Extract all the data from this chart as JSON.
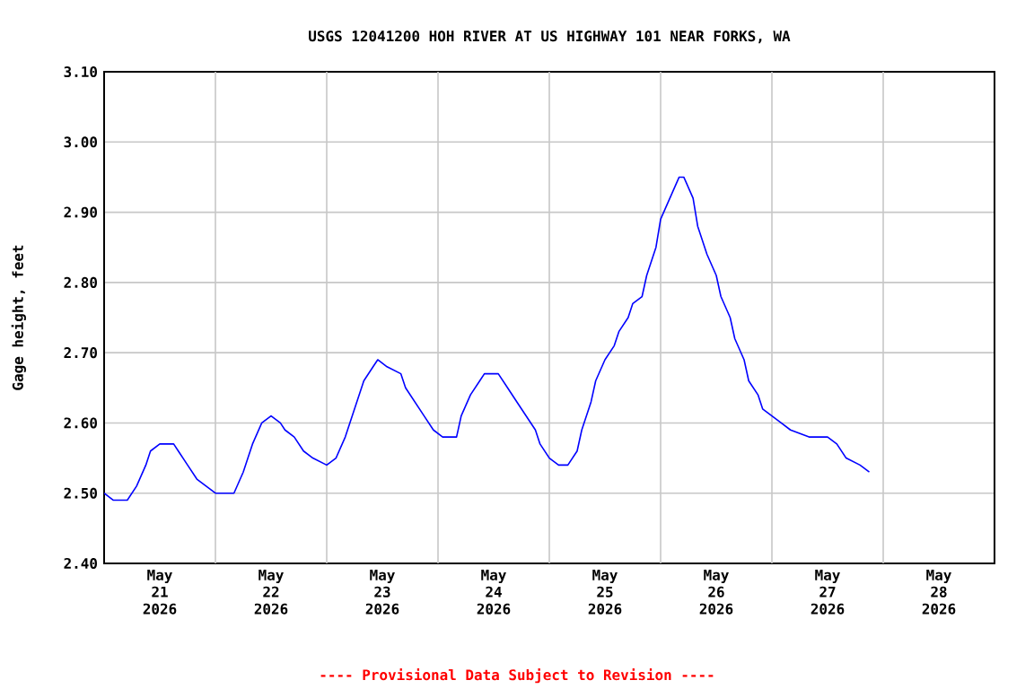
{
  "chart_data": {
    "type": "line",
    "title": "USGS 12041200 HOH RIVER AT US HIGHWAY 101 NEAR FORKS, WA",
    "ylabel": "Gage height, feet",
    "annotations": [
      "---- Provisional Data Subject to Revision ----"
    ],
    "x": [
      "2026-05-21T00:00",
      "2026-05-21T02:00",
      "2026-05-21T05:00",
      "2026-05-21T07:00",
      "2026-05-21T09:00",
      "2026-05-21T10:00",
      "2026-05-21T12:00",
      "2026-05-21T15:00",
      "2026-05-21T16:00",
      "2026-05-21T18:00",
      "2026-05-21T20:00",
      "2026-05-21T22:00",
      "2026-05-22T00:00",
      "2026-05-22T04:00",
      "2026-05-22T06:00",
      "2026-05-22T08:00",
      "2026-05-22T10:00",
      "2026-05-22T12:00",
      "2026-05-22T14:00",
      "2026-05-22T15:00",
      "2026-05-22T17:00",
      "2026-05-22T19:00",
      "2026-05-22T21:00",
      "2026-05-23T00:00",
      "2026-05-23T02:00",
      "2026-05-23T04:00",
      "2026-05-23T06:00",
      "2026-05-23T08:00",
      "2026-05-23T10:00",
      "2026-05-23T11:00",
      "2026-05-23T13:00",
      "2026-05-23T16:00",
      "2026-05-23T17:00",
      "2026-05-23T19:00",
      "2026-05-23T21:00",
      "2026-05-23T23:00",
      "2026-05-24T01:00",
      "2026-05-24T04:00",
      "2026-05-24T05:00",
      "2026-05-24T07:00",
      "2026-05-24T09:00",
      "2026-05-24T10:00",
      "2026-05-24T13:00",
      "2026-05-24T15:00",
      "2026-05-24T17:00",
      "2026-05-24T19:00",
      "2026-05-24T21:00",
      "2026-05-24T22:00",
      "2026-05-25T00:00",
      "2026-05-25T02:00",
      "2026-05-25T04:00",
      "2026-05-25T06:00",
      "2026-05-25T07:00",
      "2026-05-25T09:00",
      "2026-05-25T10:00",
      "2026-05-25T12:00",
      "2026-05-25T14:00",
      "2026-05-25T15:00",
      "2026-05-25T17:00",
      "2026-05-25T18:00",
      "2026-05-25T20:00",
      "2026-05-25T21:00",
      "2026-05-25T23:00",
      "2026-05-26T00:00",
      "2026-05-26T02:00",
      "2026-05-26T04:00",
      "2026-05-26T05:00",
      "2026-05-26T07:00",
      "2026-05-26T08:00",
      "2026-05-26T10:00",
      "2026-05-26T12:00",
      "2026-05-26T13:00",
      "2026-05-26T15:00",
      "2026-05-26T16:00",
      "2026-05-26T18:00",
      "2026-05-26T19:00",
      "2026-05-26T21:00",
      "2026-05-26T22:00",
      "2026-05-27T00:00",
      "2026-05-27T02:00",
      "2026-05-27T04:00",
      "2026-05-27T08:00",
      "2026-05-27T12:00",
      "2026-05-27T14:00",
      "2026-05-27T16:00",
      "2026-05-27T19:00",
      "2026-05-27T21:00"
    ],
    "series": [
      {
        "color": "#0000ff",
        "values": [
          2.5,
          2.49,
          2.49,
          2.51,
          2.54,
          2.56,
          2.57,
          2.57,
          2.56,
          2.54,
          2.52,
          2.51,
          2.5,
          2.5,
          2.53,
          2.57,
          2.6,
          2.61,
          2.6,
          2.59,
          2.58,
          2.56,
          2.55,
          2.54,
          2.55,
          2.58,
          2.62,
          2.66,
          2.68,
          2.69,
          2.68,
          2.67,
          2.65,
          2.63,
          2.61,
          2.59,
          2.58,
          2.58,
          2.61,
          2.64,
          2.66,
          2.67,
          2.67,
          2.65,
          2.63,
          2.61,
          2.59,
          2.57,
          2.55,
          2.54,
          2.54,
          2.56,
          2.59,
          2.63,
          2.66,
          2.69,
          2.71,
          2.73,
          2.75,
          2.77,
          2.78,
          2.81,
          2.85,
          2.89,
          2.92,
          2.95,
          2.95,
          2.92,
          2.88,
          2.84,
          2.81,
          2.78,
          2.75,
          2.72,
          2.69,
          2.66,
          2.64,
          2.62,
          2.61,
          2.6,
          2.59,
          2.58,
          2.58,
          2.57,
          2.55,
          2.54,
          2.53
        ]
      }
    ],
    "xlim": [
      "2026-05-21T00:00",
      "2026-05-29T00:00"
    ],
    "xticks": [
      {
        "value": "2026-05-21T12:00",
        "label": "May 21 2026"
      },
      {
        "value": "2026-05-22T12:00",
        "label": "May 22 2026"
      },
      {
        "value": "2026-05-23T12:00",
        "label": "May 23 2026"
      },
      {
        "value": "2026-05-24T12:00",
        "label": "May 24 2026"
      },
      {
        "value": "2026-05-25T12:00",
        "label": "May 25 2026"
      },
      {
        "value": "2026-05-26T12:00",
        "label": "May 26 2026"
      },
      {
        "value": "2026-05-27T12:00",
        "label": "May 27 2026"
      },
      {
        "value": "2026-05-28T12:00",
        "label": "May 28 2026"
      },
      {
        "value": "2026-05-22T00:00",
        "label": null
      },
      {
        "value": "2026-05-23T00:00",
        "label": null
      },
      {
        "value": "2026-05-24T00:00",
        "label": null
      },
      {
        "value": "2026-05-25T00:00",
        "label": null
      },
      {
        "value": "2026-05-26T00:00",
        "label": null
      },
      {
        "value": "2026-05-27T00:00",
        "label": null
      },
      {
        "value": "2026-05-28T00:00",
        "label": null
      }
    ],
    "ylim": [
      2.4,
      3.1
    ],
    "yticks": [
      {
        "value": 2.4,
        "label": "2.40"
      },
      {
        "value": 2.5,
        "label": "2.50"
      },
      {
        "value": 2.6,
        "label": "2.60"
      },
      {
        "value": 2.7,
        "label": "2.70"
      },
      {
        "value": 2.8,
        "label": "2.80"
      },
      {
        "value": 2.9,
        "label": "2.90"
      },
      {
        "value": 3.0,
        "label": "3.00"
      },
      {
        "value": 3.1,
        "label": "3.10"
      }
    ],
    "grid": true
  }
}
